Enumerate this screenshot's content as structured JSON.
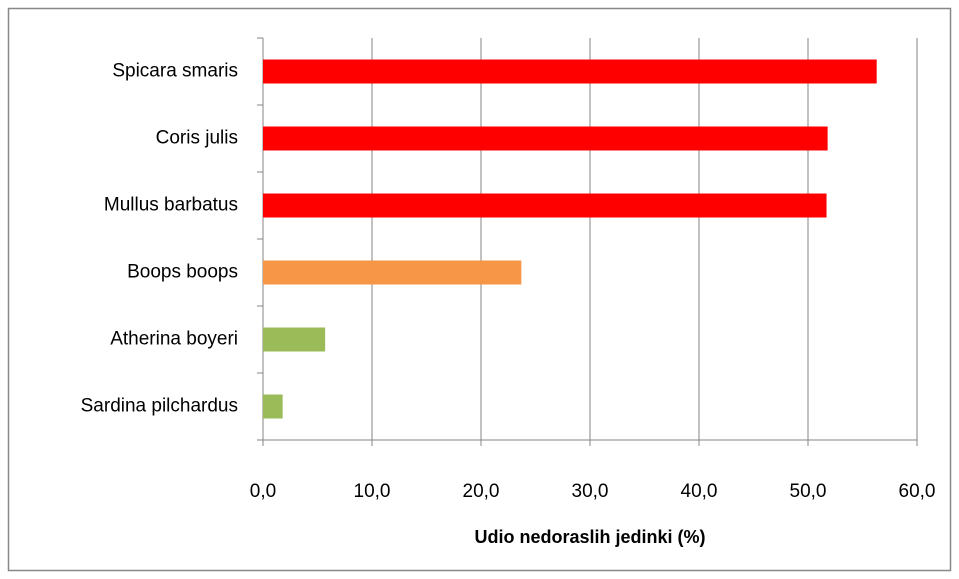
{
  "chart_data": {
    "type": "barh",
    "categories": [
      "Spicara smaris",
      "Coris julis",
      "Mullus barbatus",
      "Boops boops",
      "Atherina boyeri",
      "Sardina pilchardus"
    ],
    "values": [
      56.3,
      51.8,
      51.7,
      23.7,
      5.7,
      1.8
    ],
    "colors": [
      "#ff0000",
      "#ff0000",
      "#ff0000",
      "#f79646",
      "#9bbb59",
      "#9bbb59"
    ],
    "xlabel": "Udio nedoraslih jedinki (%)",
    "xlim": [
      0,
      60
    ],
    "xticks": [
      {
        "value": 0,
        "label": "0,0"
      },
      {
        "value": 10,
        "label": "10,0"
      },
      {
        "value": 20,
        "label": "20,0"
      },
      {
        "value": 30,
        "label": "30,0"
      },
      {
        "value": 40,
        "label": "40,0"
      },
      {
        "value": 50,
        "label": "50,0"
      },
      {
        "value": 60,
        "label": "60,0"
      }
    ],
    "grid": true
  }
}
